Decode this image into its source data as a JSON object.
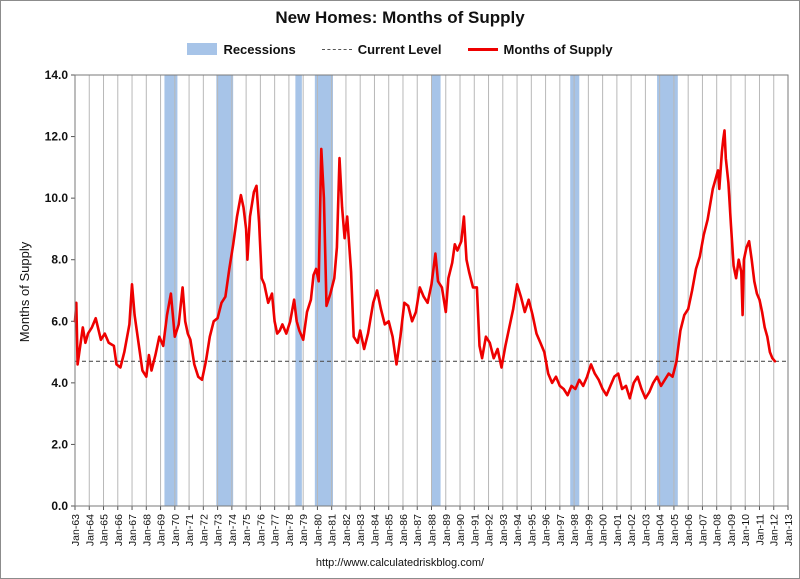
{
  "chart_data": {
    "type": "line",
    "title": "New Homes: Months of Supply",
    "ylabel": "Months of Supply",
    "xlabel": "",
    "ylim": [
      0,
      14
    ],
    "yticks": [
      "0.0",
      "2.0",
      "4.0",
      "6.0",
      "8.0",
      "10.0",
      "12.0",
      "14.0"
    ],
    "xticks": [
      "Jan-63",
      "Jan-64",
      "Jan-65",
      "Jan-66",
      "Jan-67",
      "Jan-68",
      "Jan-69",
      "Jan-70",
      "Jan-71",
      "Jan-72",
      "Jan-73",
      "Jan-74",
      "Jan-75",
      "Jan-76",
      "Jan-77",
      "Jan-78",
      "Jan-79",
      "Jan-80",
      "Jan-81",
      "Jan-82",
      "Jan-83",
      "Jan-84",
      "Jan-85",
      "Jan-86",
      "Jan-87",
      "Jan-88",
      "Jan-89",
      "Jan-90",
      "Jan-91",
      "Jan-92",
      "Jan-93",
      "Jan-94",
      "Jan-95",
      "Jan-96",
      "Jan-97",
      "Jan-98",
      "Jan-99",
      "Jan-00",
      "Jan-01",
      "Jan-02",
      "Jan-03",
      "Jan-04",
      "Jan-05",
      "Jan-06",
      "Jan-07",
      "Jan-08",
      "Jan-09",
      "Jan-10",
      "Jan-11",
      "Jan-12",
      "Jan-13"
    ],
    "legend": [
      "Recessions",
      "Current Level",
      "Months of Supply"
    ],
    "legend_position": "top-center",
    "grid": "vertical",
    "current_level": 4.7,
    "recessions": [
      [
        1969.9,
        1970.9
      ],
      [
        1973.9,
        1975.2
      ],
      [
        1980.0,
        1980.5
      ],
      [
        1981.5,
        1982.9
      ],
      [
        1990.5,
        1991.2
      ],
      [
        2001.2,
        2001.9
      ],
      [
        2007.9,
        2009.5
      ]
    ],
    "series": [
      {
        "name": "Months of Supply",
        "color": "#ee0000",
        "points": [
          [
            1963.0,
            6.0
          ],
          [
            1963.1,
            6.6
          ],
          [
            1963.2,
            4.6
          ],
          [
            1963.4,
            5.2
          ],
          [
            1963.6,
            5.8
          ],
          [
            1963.8,
            5.3
          ],
          [
            1964.0,
            5.6
          ],
          [
            1964.3,
            5.8
          ],
          [
            1964.6,
            6.1
          ],
          [
            1965.0,
            5.4
          ],
          [
            1965.3,
            5.6
          ],
          [
            1965.6,
            5.3
          ],
          [
            1966.0,
            5.2
          ],
          [
            1966.2,
            4.6
          ],
          [
            1966.5,
            4.5
          ],
          [
            1966.8,
            5.0
          ],
          [
            1967.2,
            5.9
          ],
          [
            1967.4,
            7.2
          ],
          [
            1967.6,
            6.2
          ],
          [
            1967.9,
            5.3
          ],
          [
            1968.2,
            4.4
          ],
          [
            1968.5,
            4.2
          ],
          [
            1968.7,
            4.9
          ],
          [
            1968.9,
            4.4
          ],
          [
            1969.2,
            4.9
          ],
          [
            1969.5,
            5.5
          ],
          [
            1969.8,
            5.2
          ],
          [
            1970.1,
            6.2
          ],
          [
            1970.4,
            6.9
          ],
          [
            1970.7,
            5.5
          ],
          [
            1971.0,
            5.9
          ],
          [
            1971.3,
            7.1
          ],
          [
            1971.5,
            6.0
          ],
          [
            1971.7,
            5.6
          ],
          [
            1971.9,
            5.4
          ],
          [
            1972.2,
            4.6
          ],
          [
            1972.5,
            4.2
          ],
          [
            1972.8,
            4.1
          ],
          [
            1973.1,
            4.7
          ],
          [
            1973.4,
            5.5
          ],
          [
            1973.7,
            6.0
          ],
          [
            1974.0,
            6.1
          ],
          [
            1974.3,
            6.6
          ],
          [
            1974.6,
            6.8
          ],
          [
            1974.9,
            7.7
          ],
          [
            1975.2,
            8.5
          ],
          [
            1975.5,
            9.4
          ],
          [
            1975.8,
            10.1
          ],
          [
            1976.0,
            9.7
          ],
          [
            1976.2,
            9.0
          ],
          [
            1976.3,
            8.0
          ],
          [
            1976.5,
            9.4
          ],
          [
            1976.8,
            10.2
          ],
          [
            1977.0,
            10.4
          ],
          [
            1977.2,
            9.2
          ],
          [
            1977.4,
            7.4
          ],
          [
            1977.6,
            7.2
          ],
          [
            1977.9,
            6.6
          ],
          [
            1978.2,
            6.9
          ],
          [
            1978.4,
            6.0
          ],
          [
            1978.6,
            5.6
          ],
          [
            1978.8,
            5.7
          ],
          [
            1979.0,
            5.9
          ],
          [
            1979.3,
            5.6
          ],
          [
            1979.6,
            6.0
          ],
          [
            1979.9,
            6.7
          ],
          [
            1980.1,
            6.0
          ],
          [
            1980.3,
            5.7
          ],
          [
            1980.6,
            5.4
          ],
          [
            1980.9,
            6.3
          ],
          [
            1981.2,
            6.7
          ],
          [
            1981.4,
            7.5
          ],
          [
            1981.6,
            7.7
          ],
          [
            1981.8,
            7.3
          ],
          [
            1982.0,
            11.6
          ],
          [
            1982.2,
            10.0
          ],
          [
            1982.4,
            6.5
          ],
          [
            1982.7,
            6.9
          ],
          [
            1983.0,
            7.4
          ],
          [
            1983.2,
            8.4
          ],
          [
            1983.4,
            11.3
          ],
          [
            1983.6,
            9.7
          ],
          [
            1983.8,
            8.7
          ],
          [
            1984.0,
            9.4
          ],
          [
            1984.3,
            7.6
          ],
          [
            1984.5,
            5.5
          ],
          [
            1984.8,
            5.3
          ],
          [
            1985.0,
            5.7
          ],
          [
            1985.3,
            5.1
          ],
          [
            1985.6,
            5.6
          ],
          [
            1985.8,
            6.1
          ],
          [
            1986.0,
            6.6
          ],
          [
            1986.3,
            7.0
          ],
          [
            1986.6,
            6.4
          ],
          [
            1986.9,
            5.9
          ],
          [
            1987.2,
            6.0
          ],
          [
            1987.5,
            5.5
          ],
          [
            1987.8,
            4.6
          ],
          [
            1988.1,
            5.5
          ],
          [
            1988.4,
            6.6
          ],
          [
            1988.7,
            6.5
          ],
          [
            1989.0,
            6.0
          ],
          [
            1989.3,
            6.3
          ],
          [
            1989.6,
            7.1
          ],
          [
            1989.9,
            6.8
          ],
          [
            1990.2,
            6.6
          ],
          [
            1990.5,
            7.2
          ],
          [
            1990.8,
            8.2
          ],
          [
            1991.0,
            7.3
          ],
          [
            1991.3,
            7.1
          ],
          [
            1991.6,
            6.3
          ],
          [
            1991.8,
            7.4
          ],
          [
            1992.1,
            7.9
          ],
          [
            1992.3,
            8.5
          ],
          [
            1992.5,
            8.3
          ],
          [
            1992.8,
            8.6
          ],
          [
            1993.0,
            9.4
          ],
          [
            1993.2,
            8.0
          ],
          [
            1993.4,
            7.6
          ],
          [
            1993.7,
            7.1
          ],
          [
            1994.0,
            7.1
          ],
          [
            1994.2,
            5.2
          ],
          [
            1994.4,
            4.8
          ],
          [
            1994.7,
            5.5
          ],
          [
            1995.0,
            5.3
          ],
          [
            1995.3,
            4.8
          ],
          [
            1995.6,
            5.1
          ],
          [
            1995.9,
            4.5
          ],
          [
            1996.2,
            5.2
          ],
          [
            1996.5,
            5.8
          ],
          [
            1996.8,
            6.4
          ],
          [
            1997.1,
            7.2
          ],
          [
            1997.4,
            6.8
          ],
          [
            1997.7,
            6.3
          ],
          [
            1998.0,
            6.7
          ],
          [
            1998.3,
            6.2
          ],
          [
            1998.6,
            5.6
          ],
          [
            1998.9,
            5.3
          ],
          [
            1999.2,
            5.0
          ],
          [
            1999.5,
            4.3
          ],
          [
            1999.8,
            4.0
          ],
          [
            2000.1,
            4.2
          ],
          [
            2000.4,
            3.9
          ],
          [
            2000.7,
            3.8
          ],
          [
            2001.0,
            3.6
          ],
          [
            2001.3,
            3.9
          ],
          [
            2001.6,
            3.8
          ],
          [
            2001.9,
            4.1
          ],
          [
            2002.2,
            3.9
          ],
          [
            2002.5,
            4.2
          ],
          [
            2002.8,
            4.6
          ],
          [
            2003.1,
            4.3
          ],
          [
            2003.4,
            4.1
          ],
          [
            2003.7,
            3.8
          ],
          [
            2004.0,
            3.6
          ],
          [
            2004.3,
            3.9
          ],
          [
            2004.6,
            4.2
          ],
          [
            2004.9,
            4.3
          ],
          [
            2005.2,
            3.8
          ],
          [
            2005.5,
            3.9
          ],
          [
            2005.8,
            3.5
          ],
          [
            2006.1,
            4.0
          ],
          [
            2006.4,
            4.2
          ],
          [
            2006.7,
            3.8
          ],
          [
            2007.0,
            3.5
          ],
          [
            2007.3,
            3.7
          ],
          [
            2007.6,
            4.0
          ],
          [
            2007.9,
            4.2
          ],
          [
            2008.2,
            3.9
          ],
          [
            2008.5,
            4.1
          ],
          [
            2008.8,
            4.3
          ],
          [
            2009.1,
            4.2
          ],
          [
            2009.4,
            4.7
          ],
          [
            2009.7,
            5.7
          ],
          [
            2010.0,
            6.2
          ],
          [
            2010.3,
            6.4
          ],
          [
            2010.6,
            7.0
          ],
          [
            2010.9,
            7.7
          ],
          [
            2011.2,
            8.1
          ],
          [
            2011.5,
            8.8
          ],
          [
            2011.8,
            9.3
          ],
          [
            2012.0,
            9.8
          ],
          [
            2012.2,
            10.3
          ],
          [
            2012.4,
            10.6
          ],
          [
            2012.6,
            10.9
          ],
          [
            2012.7,
            10.3
          ],
          [
            2012.9,
            11.5
          ],
          [
            2013.0,
            11.9
          ],
          [
            2013.1,
            12.2
          ],
          [
            2013.2,
            11.3
          ],
          [
            2013.4,
            10.5
          ],
          [
            2013.6,
            9.1
          ],
          [
            2013.8,
            7.8
          ],
          [
            2014.0,
            7.4
          ],
          [
            2014.2,
            8.0
          ],
          [
            2014.4,
            7.6
          ],
          [
            2014.5,
            6.2
          ],
          [
            2014.6,
            8.0
          ],
          [
            2014.8,
            8.4
          ],
          [
            2015.0,
            8.6
          ],
          [
            2015.2,
            8.0
          ],
          [
            2015.4,
            7.3
          ],
          [
            2015.6,
            6.9
          ],
          [
            2015.8,
            6.7
          ],
          [
            2016.0,
            6.3
          ],
          [
            2016.2,
            5.8
          ],
          [
            2016.4,
            5.5
          ],
          [
            2016.6,
            5.0
          ],
          [
            2016.8,
            4.8
          ],
          [
            2017.0,
            4.7
          ]
        ]
      }
    ]
  },
  "credit": "http://www.calculatedriskblog.com/"
}
